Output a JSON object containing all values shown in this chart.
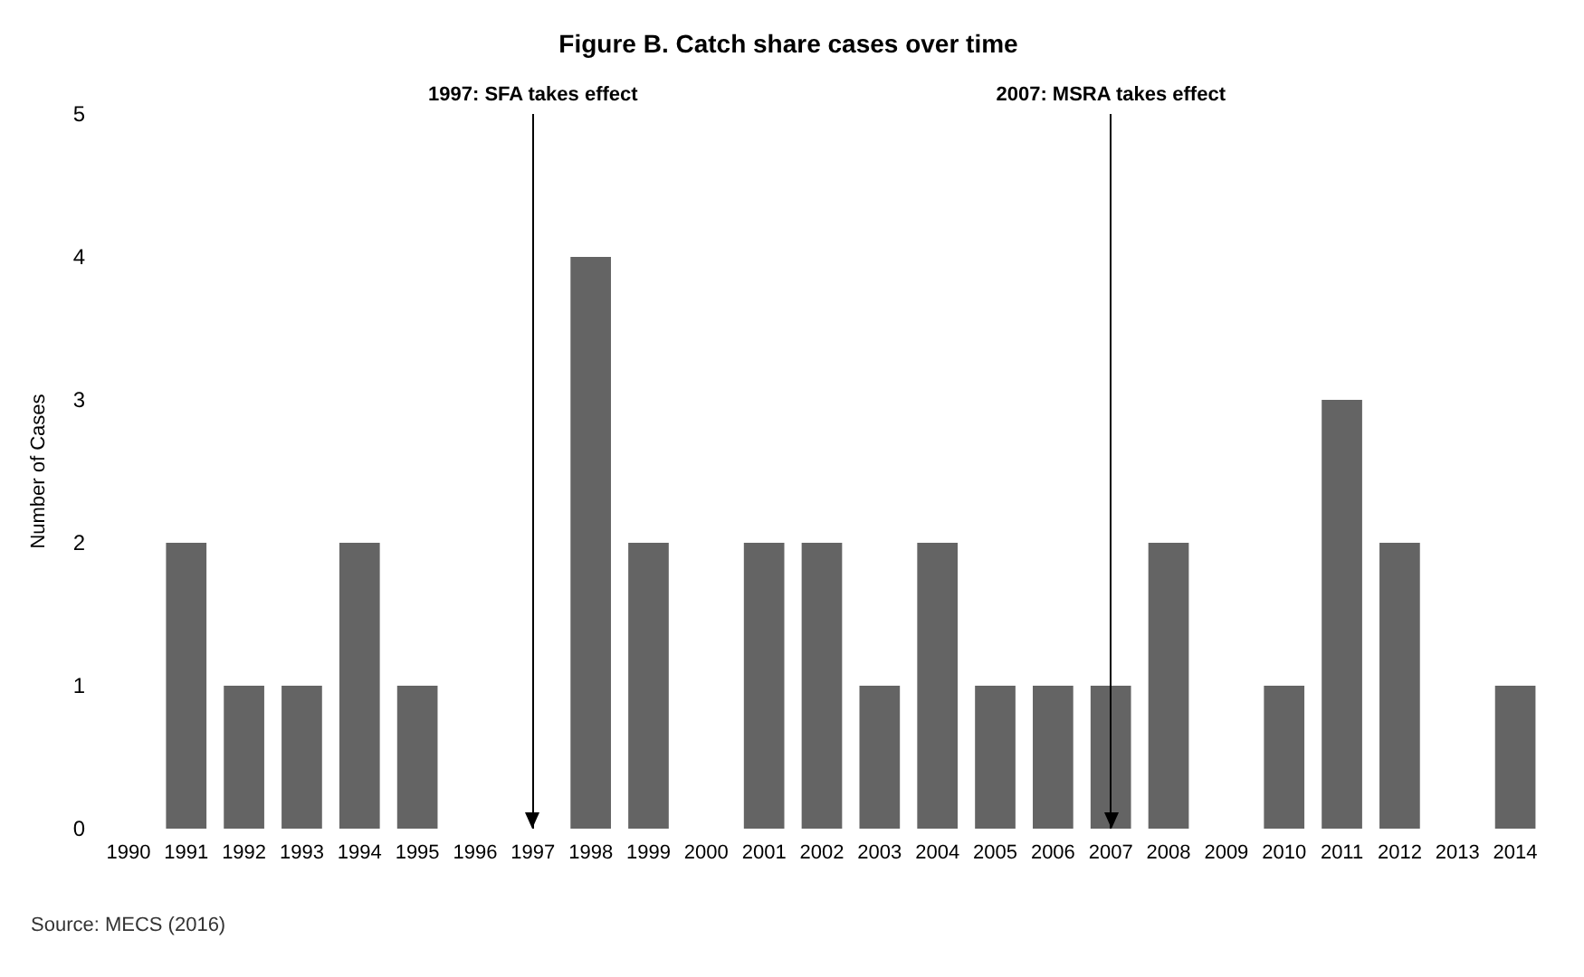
{
  "chart_data": {
    "type": "bar",
    "title": "Figure B. Catch share cases over time",
    "ylabel": "Number of Cases",
    "categories": [
      "1990",
      "1991",
      "1992",
      "1993",
      "1994",
      "1995",
      "1996",
      "1997",
      "1998",
      "1999",
      "2000",
      "2001",
      "2002",
      "2003",
      "2004",
      "2005",
      "2006",
      "2007",
      "2008",
      "2009",
      "2010",
      "2011",
      "2012",
      "2013",
      "2014"
    ],
    "values": [
      0,
      2,
      1,
      1,
      2,
      1,
      0,
      0,
      4,
      2,
      0,
      2,
      2,
      1,
      2,
      1,
      1,
      1,
      2,
      0,
      1,
      3,
      2,
      0,
      1
    ],
    "color": "#646464",
    "ylim": [
      0,
      5
    ],
    "yticks": [
      0,
      1,
      2,
      3,
      4,
      5
    ],
    "grid": false,
    "ref_lines": [
      {
        "axis": "x",
        "value": "1997",
        "label": "1997: SFA takes effect",
        "color": "#000000"
      },
      {
        "axis": "x",
        "value": "2007",
        "label": "2007: MSRA takes effect",
        "color": "#000000"
      }
    ],
    "annotations": [
      "Source: MECS (2016)"
    ]
  }
}
